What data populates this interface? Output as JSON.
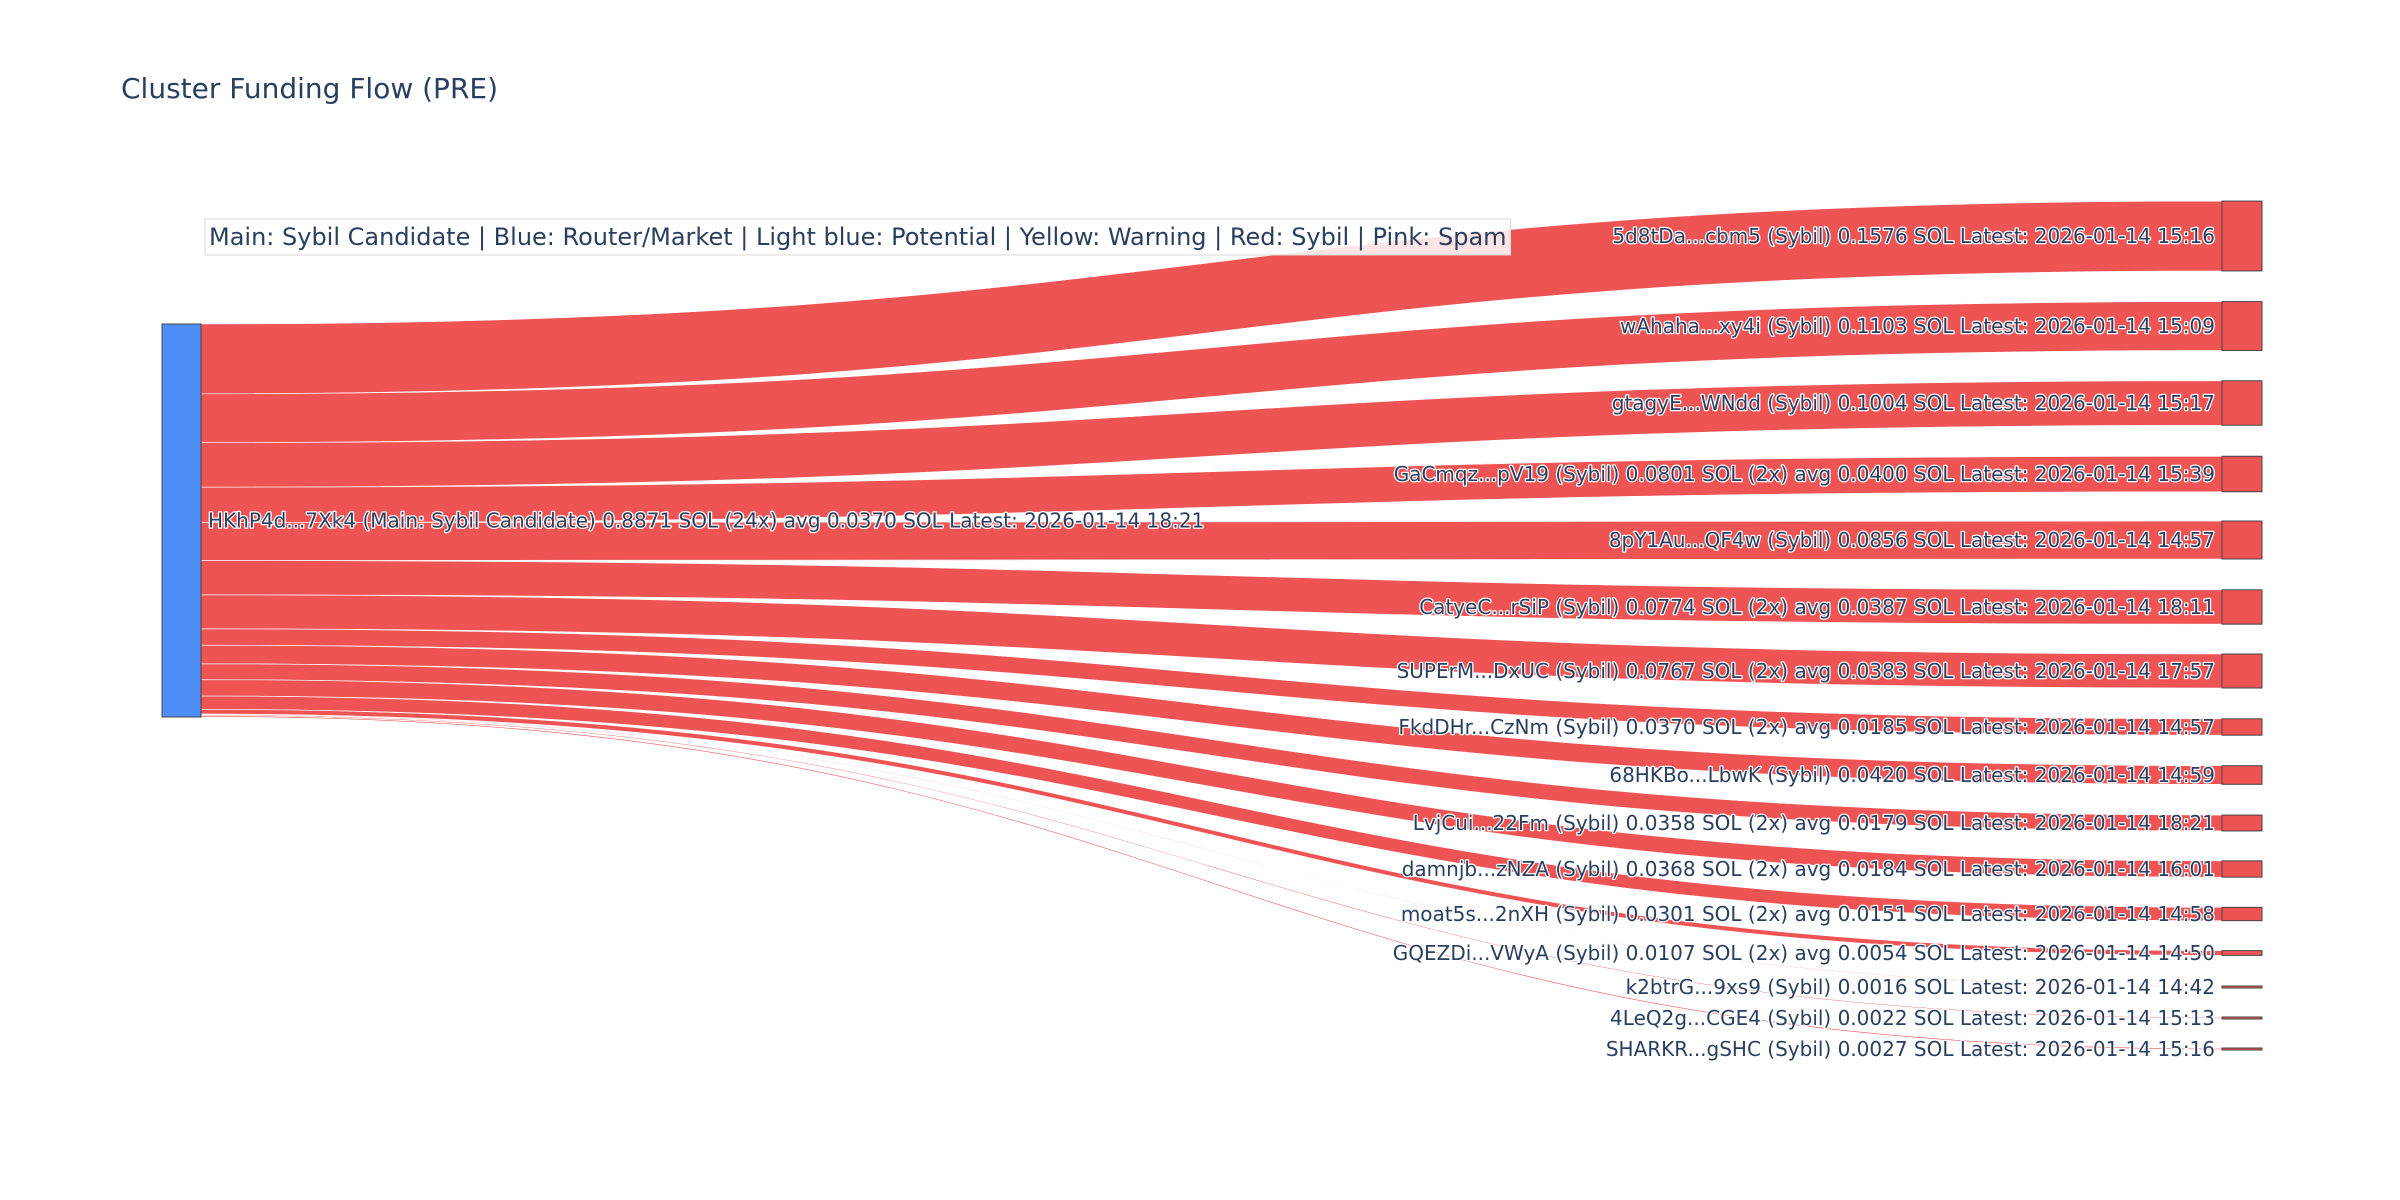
{
  "title": "Cluster Funding Flow (PRE)",
  "legend": "Main: Sybil Candidate  |  Blue: Router/Market | Light blue: Potential | Yellow: Warning | Red: Sybil | Pink: Spam",
  "colors": {
    "main_node": "#4d8ff7",
    "sybil_node": "#ef5455",
    "link": "#ef5455",
    "node_border": "#444444",
    "text": "#2a3f5f"
  },
  "chart_data": {
    "type": "sankey",
    "source": {
      "label": "HKhP4d...7Xk4 (Main: Sybil Candidate) 0.8871 SOL (24x) avg 0.0370 SOL Latest: 2026-01-14 18:21",
      "value": 0.8871,
      "category": "Main: Sybil Candidate"
    },
    "targets": [
      {
        "label": "5d8tDa...cbm5 (Sybil) 0.1576 SOL Latest: 2026-01-14 15:16",
        "value": 0.1576,
        "category": "Sybil"
      },
      {
        "label": "wAhaha...xy4i (Sybil) 0.1103 SOL Latest: 2026-01-14 15:09",
        "value": 0.1103,
        "category": "Sybil"
      },
      {
        "label": "gtagyE...WNdd (Sybil) 0.1004 SOL Latest: 2026-01-14 15:17",
        "value": 0.1004,
        "category": "Sybil"
      },
      {
        "label": "GaCmqz...pV19 (Sybil) 0.0801 SOL (2x) avg 0.0400 SOL Latest: 2026-01-14 15:39",
        "value": 0.0801,
        "category": "Sybil"
      },
      {
        "label": "8pY1Au...QF4w (Sybil) 0.0856 SOL Latest: 2026-01-14 14:57",
        "value": 0.0856,
        "category": "Sybil"
      },
      {
        "label": "CatyeC...rSiP (Sybil) 0.0774 SOL (2x) avg 0.0387 SOL Latest: 2026-01-14 18:11",
        "value": 0.0774,
        "category": "Sybil"
      },
      {
        "label": "SUPErM...DxUC (Sybil) 0.0767 SOL (2x) avg 0.0383 SOL Latest: 2026-01-14 17:57",
        "value": 0.0767,
        "category": "Sybil"
      },
      {
        "label": "FkdDHr...CzNm (Sybil) 0.0370 SOL (2x) avg 0.0185 SOL Latest: 2026-01-14 14:57",
        "value": 0.037,
        "category": "Sybil"
      },
      {
        "label": "68HKBo...LbwK (Sybil) 0.0420 SOL Latest: 2026-01-14 14:59",
        "value": 0.042,
        "category": "Sybil"
      },
      {
        "label": "LvjCui...22Fm (Sybil) 0.0358 SOL (2x) avg 0.0179 SOL Latest: 2026-01-14 18:21",
        "value": 0.0358,
        "category": "Sybil"
      },
      {
        "label": "damnjb...zNZA (Sybil) 0.0368 SOL (2x) avg 0.0184 SOL Latest: 2026-01-14 16:01",
        "value": 0.0368,
        "category": "Sybil"
      },
      {
        "label": "moat5s...2nXH (Sybil) 0.0301 SOL (2x) avg 0.0151 SOL Latest: 2026-01-14 14:58",
        "value": 0.0301,
        "category": "Sybil"
      },
      {
        "label": "GQEZDi...VWyA (Sybil) 0.0107 SOL (2x) avg 0.0054 SOL Latest: 2026-01-14 14:50",
        "value": 0.0107,
        "category": "Sybil"
      },
      {
        "label": "k2btrG...9xs9 (Sybil) 0.0016 SOL Latest: 2026-01-14 14:42",
        "value": 0.0016,
        "category": "Sybil"
      },
      {
        "label": "4LeQ2g...CGE4 (Sybil) 0.0022 SOL Latest: 2026-01-14 15:13",
        "value": 0.0022,
        "category": "Sybil"
      },
      {
        "label": "SHARKR...gSHC (Sybil) 0.0027 SOL Latest: 2026-01-14 15:16",
        "value": 0.0027,
        "category": "Sybil"
      }
    ]
  }
}
